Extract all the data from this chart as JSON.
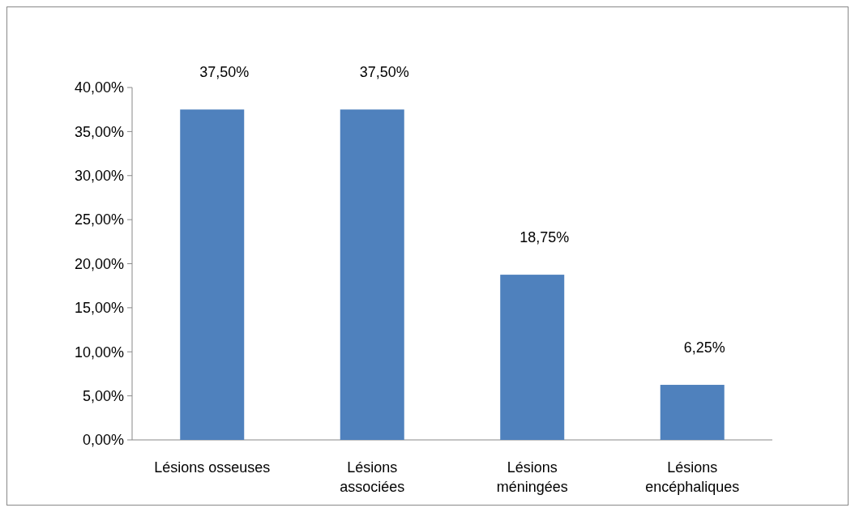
{
  "chart_data": {
    "type": "bar",
    "categories": [
      "Lésions osseuses",
      "Lésions associées",
      "Lésions méningées",
      "Lésions encéphaliques"
    ],
    "values": [
      37.5,
      37.5,
      18.75,
      6.25
    ],
    "value_labels": [
      "37,50%",
      "37,50%",
      "18,75%",
      "6,25%"
    ],
    "color": "#4f81bd",
    "ylim": [
      0,
      40
    ],
    "grid": false,
    "yticks": [
      {
        "value": 0,
        "label": "0,00%"
      },
      {
        "value": 5,
        "label": "5,00%"
      },
      {
        "value": 10,
        "label": "10,00%"
      },
      {
        "value": 15,
        "label": "15,00%"
      },
      {
        "value": 20,
        "label": "20,00%"
      },
      {
        "value": 25,
        "label": "25,00%"
      },
      {
        "value": 30,
        "label": "30,00%"
      },
      {
        "value": 35,
        "label": "35,00%"
      },
      {
        "value": 40,
        "label": "40,00%"
      }
    ]
  }
}
